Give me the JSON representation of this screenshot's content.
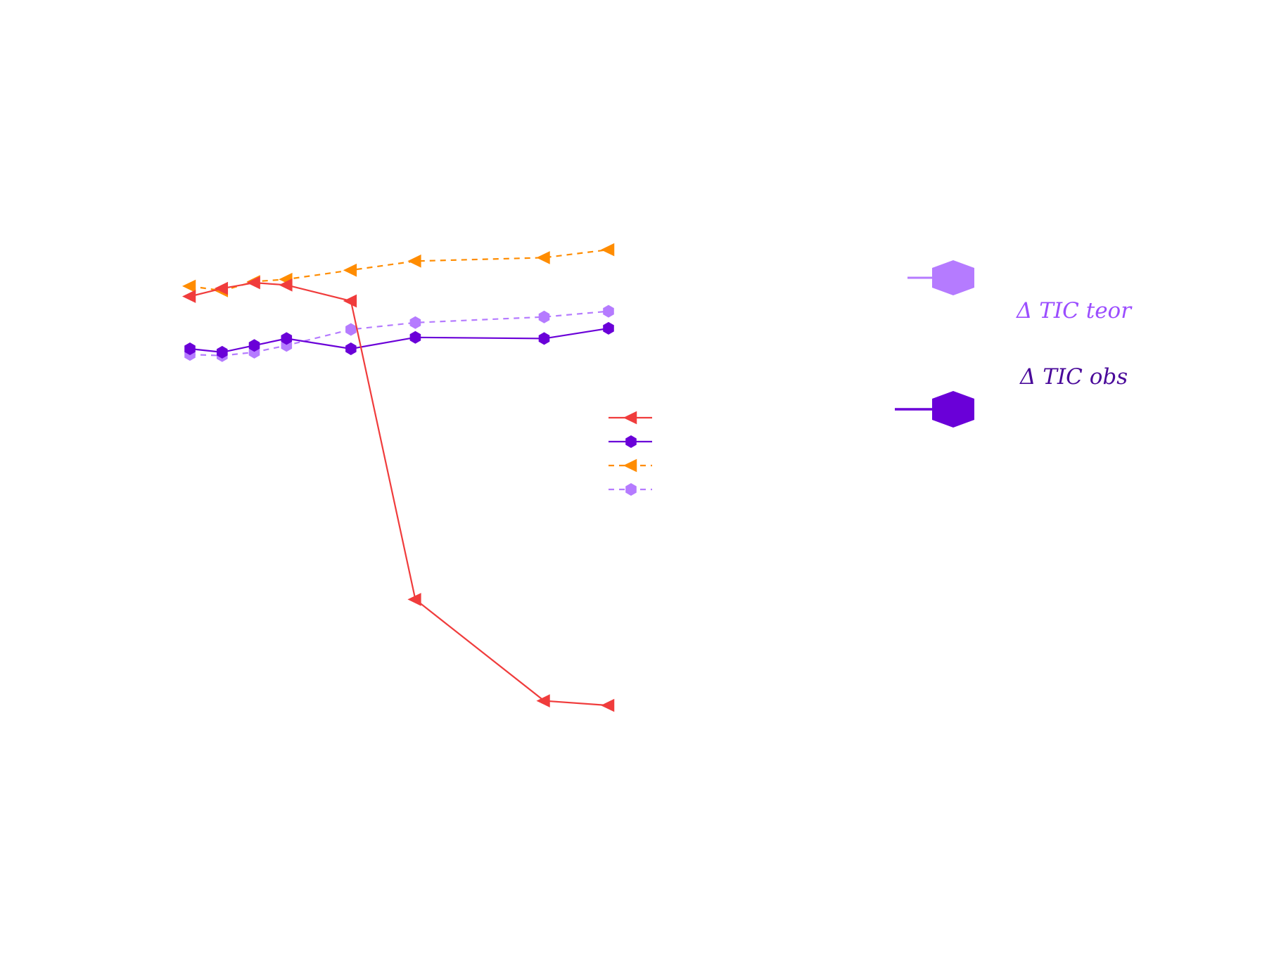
{
  "chart_data": {
    "type": "line",
    "title": "",
    "xlabel": "",
    "ylabel": "",
    "x": [
      1,
      2,
      3,
      4,
      6,
      8,
      12,
      14
    ],
    "xlim": [
      1,
      14
    ],
    "ylim": [
      -400,
      100
    ],
    "grid": false,
    "series": [
      {
        "color": "#f03c3c",
        "dash": "none",
        "marker": "triangle-left",
        "values": [
          25,
          32,
          37,
          35,
          21,
          -241,
          -330,
          -334
        ]
      },
      {
        "color": "#6a00d8",
        "dash": "none",
        "marker": "hexagon",
        "values": [
          -21,
          -24,
          -18,
          -12,
          -21,
          -11,
          -12,
          -3
        ]
      },
      {
        "color": "#ff8c00",
        "dash": "8,7",
        "marker": "triangle-left",
        "values": [
          34,
          30,
          38,
          40,
          48,
          56,
          59,
          66
        ]
      },
      {
        "color": "#b57bff",
        "dash": "8,7",
        "marker": "hexagon",
        "values": [
          -26,
          -27,
          -24,
          -18,
          -4,
          2,
          7,
          12
        ]
      }
    ],
    "legend": {
      "placement": "center-right"
    }
  },
  "side_legend": {
    "entries": [
      {
        "label": "Δ TIC teor",
        "color": "#b57bff",
        "text_color": "#9b4dff"
      },
      {
        "label": "Δ TIC obs",
        "color": "#6a00d8",
        "text_color": "#4a0a9a"
      }
    ]
  }
}
